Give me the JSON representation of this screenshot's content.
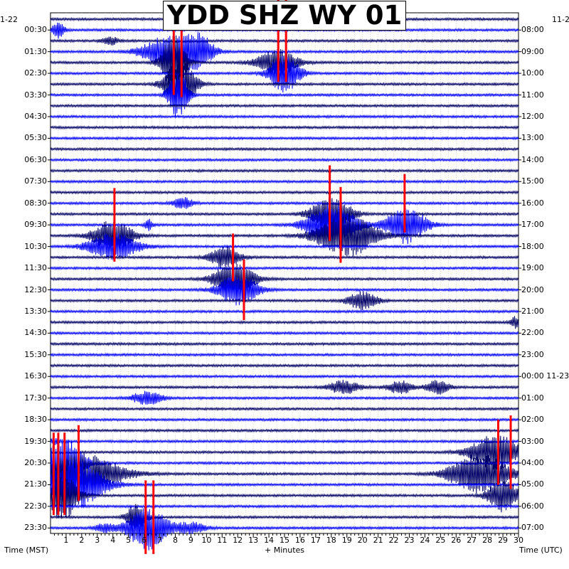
{
  "chart_data": {
    "type": "line",
    "title": "YDD SHZ WY 01",
    "xlabel": "+ Minutes",
    "left_axis_label": "Time (MST)",
    "right_axis_label": "Time (UTC)",
    "left_corner_date": "1-22",
    "right_corner_date": "11-2",
    "xlim": [
      0,
      30
    ],
    "x_ticks": [
      "1",
      "2",
      "3",
      "4",
      "5",
      "6",
      "7",
      "8",
      "9",
      "10",
      "11",
      "12",
      "13",
      "14",
      "15",
      "16",
      "17",
      "18",
      "19",
      "20",
      "21",
      "22",
      "23",
      "24",
      "25",
      "26",
      "27",
      "28",
      "29",
      "30"
    ],
    "left_ticks": [
      "00:30",
      "01:30",
      "02:30",
      "03:30",
      "04:30",
      "05:30",
      "06:30",
      "07:30",
      "08:30",
      "09:30",
      "10:30",
      "11:30",
      "12:30",
      "13:30",
      "14:30",
      "15:30",
      "16:30",
      "17:30",
      "18:30",
      "19:30",
      "20:30",
      "21:30",
      "22:30",
      "23:30"
    ],
    "right_ticks": [
      "08:00",
      "09:00",
      "10:00",
      "11:00",
      "12:00",
      "13:00",
      "14:00",
      "15:00",
      "16:00",
      "17:00",
      "18:00",
      "19:00",
      "20:00",
      "21:00",
      "22:00",
      "23:00",
      "00:00 11-23",
      "01:00",
      "02:00",
      "03:00",
      "04:00",
      "05:00",
      "06:00",
      "07:00"
    ],
    "n_traces": 48,
    "trace_minutes": 30,
    "colors": [
      "#000066",
      "#0000ff"
    ],
    "clip_color": "#ff0000",
    "grid": true,
    "events": [
      {
        "trace": 1,
        "minute": 0.5,
        "amp": 0.7,
        "dur": 0.6
      },
      {
        "trace": 2,
        "minute": 3.8,
        "amp": 0.4,
        "dur": 0.8
      },
      {
        "trace": 3,
        "minute": 7.5,
        "amp": 1.4,
        "dur": 2.5
      },
      {
        "trace": 3,
        "minute": 9.5,
        "amp": 1.6,
        "dur": 1.5
      },
      {
        "trace": 4,
        "minute": 7.9,
        "amp": 2.6,
        "dur": 1.2
      },
      {
        "trace": 4,
        "minute": 14.5,
        "amp": 1.2,
        "dur": 2.0
      },
      {
        "trace": 5,
        "minute": 15.0,
        "amp": 1.8,
        "dur": 1.5
      },
      {
        "trace": 6,
        "minute": 8.3,
        "amp": 2.5,
        "dur": 1.5
      },
      {
        "trace": 7,
        "minute": 8.2,
        "amp": 2.2,
        "dur": 1.0
      },
      {
        "trace": 17,
        "minute": 8.5,
        "amp": 0.5,
        "dur": 1.0
      },
      {
        "trace": 18,
        "minute": 18.0,
        "amp": 1.6,
        "dur": 2.0
      },
      {
        "trace": 19,
        "minute": 18.0,
        "amp": 1.8,
        "dur": 2.5
      },
      {
        "trace": 19,
        "minute": 22.8,
        "amp": 1.7,
        "dur": 2.0
      },
      {
        "trace": 19,
        "minute": 6.3,
        "amp": 0.5,
        "dur": 0.4
      },
      {
        "trace": 20,
        "minute": 19.0,
        "amp": 1.9,
        "dur": 3.0
      },
      {
        "trace": 20,
        "minute": 4.0,
        "amp": 1.4,
        "dur": 2.0
      },
      {
        "trace": 21,
        "minute": 4.0,
        "amp": 1.2,
        "dur": 2.5
      },
      {
        "trace": 22,
        "minute": 11.2,
        "amp": 1.0,
        "dur": 1.5
      },
      {
        "trace": 24,
        "minute": 11.8,
        "amp": 1.6,
        "dur": 2.0
      },
      {
        "trace": 25,
        "minute": 12.0,
        "amp": 1.4,
        "dur": 2.0
      },
      {
        "trace": 26,
        "minute": 20.0,
        "amp": 0.8,
        "dur": 1.5
      },
      {
        "trace": 28,
        "minute": 29.8,
        "amp": 0.5,
        "dur": 0.5
      },
      {
        "trace": 34,
        "minute": 18.8,
        "amp": 0.6,
        "dur": 1.5
      },
      {
        "trace": 34,
        "minute": 22.4,
        "amp": 0.6,
        "dur": 1.2
      },
      {
        "trace": 34,
        "minute": 24.8,
        "amp": 0.6,
        "dur": 1.2
      },
      {
        "trace": 35,
        "minute": 6.2,
        "amp": 0.6,
        "dur": 1.5
      },
      {
        "trace": 39,
        "minute": 0.3,
        "amp": 0.3,
        "dur": 0.5
      },
      {
        "trace": 40,
        "minute": 28.5,
        "amp": 1.6,
        "dur": 2.5
      },
      {
        "trace": 41,
        "minute": 0.8,
        "amp": 2.5,
        "dur": 2.0
      },
      {
        "trace": 42,
        "minute": 2.0,
        "amp": 1.8,
        "dur": 4.0
      },
      {
        "trace": 42,
        "minute": 27.5,
        "amp": 1.8,
        "dur": 3.0
      },
      {
        "trace": 43,
        "minute": 1.5,
        "amp": 2.2,
        "dur": 3.0
      },
      {
        "trace": 44,
        "minute": 0.8,
        "amp": 2.2,
        "dur": 1.5
      },
      {
        "trace": 44,
        "minute": 29.0,
        "amp": 1.5,
        "dur": 1.5
      },
      {
        "trace": 46,
        "minute": 5.5,
        "amp": 1.2,
        "dur": 1.0
      },
      {
        "trace": 47,
        "minute": 6.2,
        "amp": 2.0,
        "dur": 2.0
      },
      {
        "trace": 47,
        "minute": 3.5,
        "amp": 0.4,
        "dur": 1.0
      },
      {
        "trace": 47,
        "minute": 9.0,
        "amp": 0.5,
        "dur": 1.5
      }
    ],
    "clips": [
      {
        "trace": 3,
        "minute": 7.9,
        "amp": 4.0
      },
      {
        "trace": 3,
        "minute": 8.4,
        "amp": 4.2
      },
      {
        "trace": 2,
        "minute": 14.6,
        "amp": 3.8
      },
      {
        "trace": 2,
        "minute": 15.1,
        "amp": 3.8
      },
      {
        "trace": 17,
        "minute": 17.9,
        "amp": 3.5
      },
      {
        "trace": 17,
        "minute": 22.7,
        "amp": 2.7
      },
      {
        "trace": 19,
        "minute": 18.6,
        "amp": 3.5
      },
      {
        "trace": 19,
        "minute": 4.1,
        "amp": 3.4
      },
      {
        "trace": 22,
        "minute": 11.7,
        "amp": 2.2
      },
      {
        "trace": 25,
        "minute": 12.4,
        "amp": 2.8
      },
      {
        "trace": 40,
        "minute": 28.7,
        "amp": 3.0
      },
      {
        "trace": 40,
        "minute": 29.5,
        "amp": 3.4
      },
      {
        "trace": 42,
        "minute": 0.2,
        "amp": 3.8
      },
      {
        "trace": 42,
        "minute": 0.5,
        "amp": 3.8
      },
      {
        "trace": 42,
        "minute": 0.9,
        "amp": 3.8
      },
      {
        "trace": 41,
        "minute": 1.8,
        "amp": 3.5
      },
      {
        "trace": 46,
        "minute": 6.1,
        "amp": 3.4
      },
      {
        "trace": 46,
        "minute": 6.6,
        "amp": 3.4
      }
    ]
  }
}
